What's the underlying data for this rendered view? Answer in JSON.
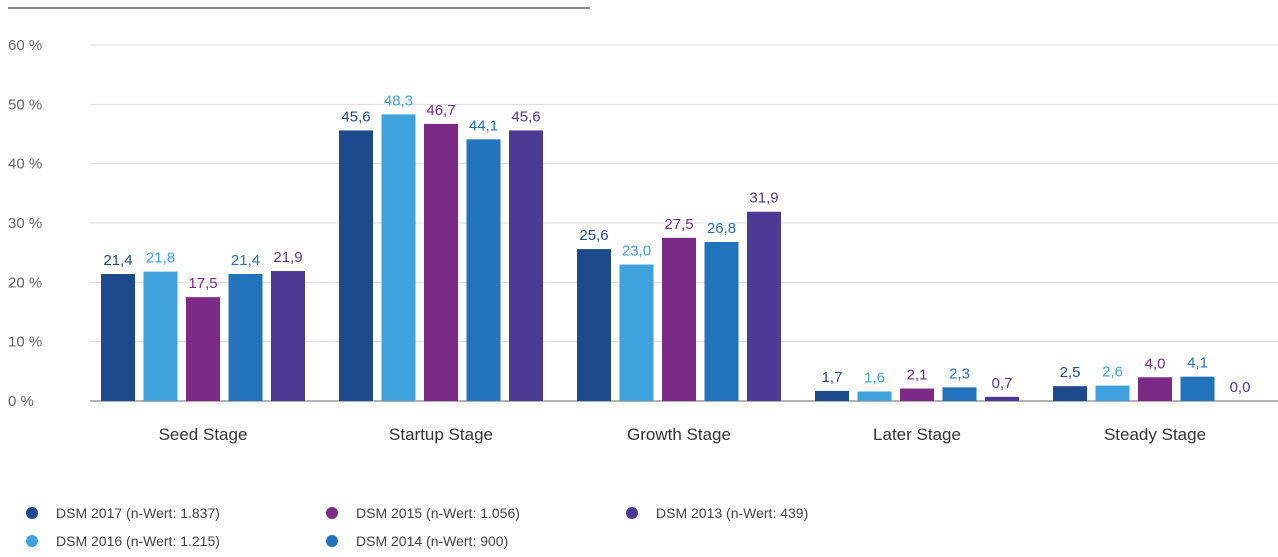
{
  "chart_data": {
    "type": "bar",
    "categories": [
      "Seed Stage",
      "Startup Stage",
      "Growth Stage",
      "Later Stage",
      "Steady Stage"
    ],
    "yticks": [
      "0 %",
      "10 %",
      "20 %",
      "30 %",
      "40 %",
      "50 %",
      "60 %"
    ],
    "ylim": [
      0,
      60
    ],
    "grid": true,
    "legend_position": "bottom-left",
    "series": [
      {
        "name": "DSM 2017 (n-Wert: 1.837)",
        "color": "#1c4a8c",
        "values": [
          21.4,
          45.6,
          25.6,
          1.7,
          2.5
        ],
        "labels": [
          "21,4",
          "45,6",
          "25,6",
          "1,7",
          "2,5"
        ]
      },
      {
        "name": "DSM 2016 (n-Wert: 1.215)",
        "color": "#3fa2dc",
        "values": [
          21.8,
          48.3,
          23.0,
          1.6,
          2.6
        ],
        "labels": [
          "21,8",
          "48,3",
          "23,0",
          "1,6",
          "2,6"
        ]
      },
      {
        "name": "DSM 2015 (n-Wert: 1.056)",
        "color": "#7b2a86",
        "values": [
          17.5,
          46.7,
          27.5,
          2.1,
          4.0
        ],
        "labels": [
          "17,5",
          "46,7",
          "27,5",
          "2,1",
          "4,0"
        ]
      },
      {
        "name": "DSM 2014 (n-Wert: 900)",
        "color": "#2173bb",
        "values": [
          21.4,
          44.1,
          26.8,
          2.3,
          4.1
        ],
        "labels": [
          "21,4",
          "44,1",
          "26,8",
          "2,3",
          "4,1"
        ]
      },
      {
        "name": "DSM 2013 (n-Wert: 439)",
        "color": "#4b3a94",
        "values": [
          21.9,
          45.6,
          31.9,
          0.7,
          0.0
        ],
        "labels": [
          "21,9",
          "45,6",
          "31,9",
          "0,7",
          "0,0"
        ]
      }
    ]
  }
}
